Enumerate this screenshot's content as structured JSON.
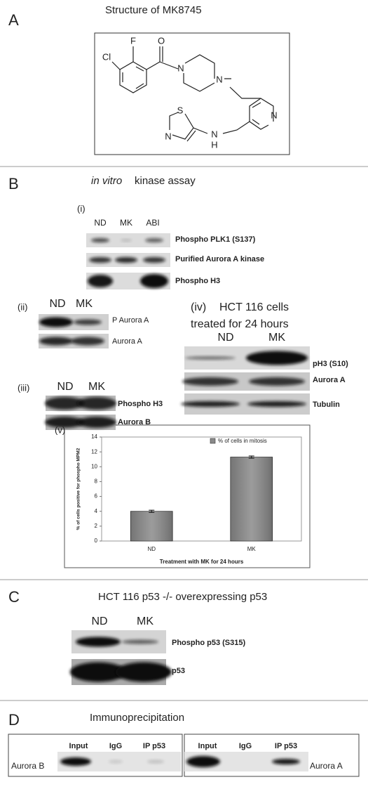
{
  "panel_a": {
    "letter": "A",
    "title": "Structure of MK8745",
    "atoms": [
      "Cl",
      "F",
      "O",
      "N",
      "N",
      "N",
      "S",
      "N",
      "N",
      "H"
    ]
  },
  "panel_b": {
    "letter": "B",
    "title_italic": "in vitro",
    "title": "kinase assay",
    "i": {
      "label": "(i)",
      "lanes": [
        "ND",
        "MK",
        "ABI"
      ],
      "blots": [
        "Phospho PLK1 (S137)",
        "Purified Aurora A kinase",
        "Phospho H3"
      ]
    },
    "ii": {
      "label": "(ii)",
      "lanes": [
        "ND",
        "MK"
      ],
      "blots": [
        "P Aurora A",
        "Aurora A"
      ]
    },
    "iii": {
      "label": "(iii)",
      "lanes": [
        "ND",
        "MK"
      ],
      "blots": [
        "Phospho H3",
        "Aurora B"
      ]
    },
    "iv": {
      "label": "(iv)",
      "title": [
        "HCT 116 cells",
        "treated for 24 hours"
      ],
      "lanes": [
        "ND",
        "MK"
      ],
      "blots": [
        "pH3 (S10)",
        "Aurora A",
        "Tubulin"
      ]
    },
    "v": {
      "label": "(v)"
    }
  },
  "chart_data": {
    "type": "bar",
    "ylabel": "% of cells positive for phospho MPM2",
    "xlabel": "Treatment with MK for 24 hours",
    "categories": [
      "ND",
      "MK"
    ],
    "series": [
      {
        "name": "% of cells in mitosis",
        "color": "#8a8a8a",
        "values": [
          4.0,
          11.3
        ],
        "errors": [
          0.15,
          0.15
        ]
      }
    ],
    "ylim": [
      0,
      14
    ],
    "yticks": [
      0,
      2,
      4,
      6,
      8,
      10,
      12,
      14
    ],
    "grid": false
  },
  "panel_c": {
    "letter": "C",
    "title": "HCT 116 p53 -/- overexpressing p53",
    "lanes": [
      "ND",
      "MK"
    ],
    "blots": [
      "Phospho p53 (S315)",
      "p53"
    ]
  },
  "panel_d": {
    "letter": "D",
    "title": "Immunoprecipitation",
    "left": {
      "lanes": [
        "Input",
        "IgG",
        "IP p53"
      ],
      "blot": "Aurora B"
    },
    "right": {
      "lanes": [
        "Input",
        "IgG",
        "IP p53"
      ],
      "blot": "Aurora A"
    }
  }
}
